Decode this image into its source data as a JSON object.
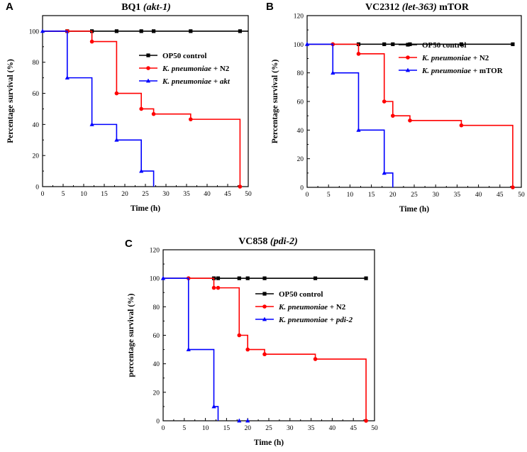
{
  "chart_data": [
    {
      "id": "A",
      "type": "line",
      "step": true,
      "letter": "A",
      "title": {
        "main": "BQ1 ",
        "italic": "(akt-1)",
        "after": ""
      },
      "xlabel": "Time (h)",
      "ylabel": "Percentage survival (%)",
      "xlim": [
        0,
        50
      ],
      "ylim": [
        0,
        110
      ],
      "xticks": [
        0,
        5,
        10,
        15,
        20,
        25,
        30,
        35,
        40,
        45,
        50
      ],
      "yticks": [
        0,
        20,
        40,
        60,
        80,
        100
      ],
      "legend_position": "upper-right",
      "series": [
        {
          "name_parts": [
            {
              "t": "OP50 control",
              "i": false
            }
          ],
          "color": "#000000",
          "marker": "square",
          "steps": [
            [
              0,
              100
            ],
            [
              50,
              100
            ]
          ],
          "markers": [
            [
              6,
              100
            ],
            [
              12,
              100
            ],
            [
              18,
              100
            ],
            [
              24,
              100
            ],
            [
              27,
              100
            ],
            [
              36,
              100
            ],
            [
              48,
              100
            ]
          ]
        },
        {
          "name_parts": [
            {
              "t": "K. pneumoniae",
              "i": true
            },
            {
              "t": " + N2",
              "i": false
            }
          ],
          "color": "#ff0000",
          "marker": "circle",
          "steps": [
            [
              0,
              100
            ],
            [
              12,
              93.3
            ],
            [
              18,
              60
            ],
            [
              24,
              50
            ],
            [
              27,
              46.7
            ],
            [
              36,
              43.3
            ],
            [
              48,
              0
            ]
          ],
          "markers": [
            [
              6,
              100
            ],
            [
              12,
              93.3
            ],
            [
              18,
              60
            ],
            [
              24,
              50
            ],
            [
              27,
              46.7
            ],
            [
              36,
              43.3
            ],
            [
              48,
              0
            ]
          ]
        },
        {
          "name_parts": [
            {
              "t": "K. pneumoniae",
              "i": true
            },
            {
              "t": " + ",
              "i": false
            },
            {
              "t": "akt",
              "i": true
            }
          ],
          "color": "#0000ff",
          "marker": "triangle",
          "steps": [
            [
              0,
              100
            ],
            [
              6,
              70
            ],
            [
              12,
              40
            ],
            [
              18,
              30
            ],
            [
              24,
              10
            ],
            [
              27,
              0
            ]
          ],
          "markers": [
            [
              0,
              100
            ],
            [
              6,
              70
            ],
            [
              12,
              40
            ],
            [
              18,
              30
            ],
            [
              24,
              10
            ]
          ]
        }
      ]
    },
    {
      "id": "B",
      "type": "line",
      "step": true,
      "letter": "B",
      "title": {
        "main": "VC2312 ",
        "italic": "(let-363)",
        "after": " mTOR"
      },
      "xlabel": "Time (h)",
      "ylabel": "Percentage survival (%)",
      "xlim": [
        0,
        50
      ],
      "ylim": [
        0,
        120
      ],
      "xticks": [
        0,
        5,
        10,
        15,
        20,
        25,
        30,
        35,
        40,
        45,
        50
      ],
      "yticks": [
        0,
        20,
        40,
        60,
        80,
        100,
        120
      ],
      "legend_position": "upper-right",
      "series": [
        {
          "name_parts": [
            {
              "t": "OP50 control",
              "i": false
            }
          ],
          "color": "#000000",
          "marker": "square",
          "steps": [
            [
              0,
              100
            ],
            [
              48,
              100
            ]
          ],
          "markers": [
            [
              12,
              100
            ],
            [
              18,
              100
            ],
            [
              20,
              100
            ],
            [
              24,
              100
            ],
            [
              36,
              100
            ],
            [
              48,
              100
            ]
          ]
        },
        {
          "name_parts": [
            {
              "t": "K. pneumoniae",
              "i": true
            },
            {
              "t": " + N2",
              "i": false
            }
          ],
          "color": "#ff0000",
          "marker": "circle",
          "steps": [
            [
              0,
              100
            ],
            [
              12,
              93.3
            ],
            [
              18,
              60
            ],
            [
              20,
              50
            ],
            [
              24,
              46.7
            ],
            [
              36,
              43.3
            ],
            [
              48,
              0
            ]
          ],
          "markers": [
            [
              6,
              100
            ],
            [
              12,
              93.3
            ],
            [
              18,
              60
            ],
            [
              20,
              50
            ],
            [
              24,
              46.7
            ],
            [
              36,
              43.3
            ],
            [
              48,
              0
            ]
          ]
        },
        {
          "name_parts": [
            {
              "t": "K. pneumoniae",
              "i": true
            },
            {
              "t": " + mTOR",
              "i": false
            }
          ],
          "color": "#0000ff",
          "marker": "triangle",
          "steps": [
            [
              0,
              100
            ],
            [
              6,
              80
            ],
            [
              12,
              40
            ],
            [
              18,
              10
            ],
            [
              20,
              0
            ]
          ],
          "markers": [
            [
              0,
              100
            ],
            [
              6,
              80
            ],
            [
              12,
              40
            ],
            [
              18,
              10
            ]
          ]
        }
      ]
    },
    {
      "id": "C",
      "type": "line",
      "step": true,
      "letter": "C",
      "title": {
        "main": "VC858 ",
        "italic": "(pdi-2)",
        "after": ""
      },
      "xlabel": "Time (h)",
      "ylabel": "percentage survival (%)",
      "xlim": [
        0,
        50
      ],
      "ylim": [
        0,
        120
      ],
      "xticks": [
        0,
        5,
        10,
        15,
        20,
        25,
        30,
        35,
        40,
        45,
        50
      ],
      "yticks": [
        0,
        20,
        40,
        60,
        80,
        100,
        120
      ],
      "legend_position": "upper-right",
      "series": [
        {
          "name_parts": [
            {
              "t": "OP50 control",
              "i": false
            }
          ],
          "color": "#000000",
          "marker": "square",
          "steps": [
            [
              0,
              100
            ],
            [
              48,
              100
            ]
          ],
          "markers": [
            [
              12,
              100
            ],
            [
              13,
              100
            ],
            [
              18,
              100
            ],
            [
              20,
              100
            ],
            [
              24,
              100
            ],
            [
              36,
              100
            ],
            [
              48,
              100
            ]
          ]
        },
        {
          "name_parts": [
            {
              "t": "K. pneumoniae",
              "i": true
            },
            {
              "t": " + N2",
              "i": false
            }
          ],
          "color": "#ff0000",
          "marker": "circle",
          "steps": [
            [
              0,
              100
            ],
            [
              12,
              93.3
            ],
            [
              18,
              60
            ],
            [
              20,
              50
            ],
            [
              24,
              46.7
            ],
            [
              36,
              43.3
            ],
            [
              48,
              0
            ]
          ],
          "markers": [
            [
              6,
              100
            ],
            [
              12,
              93.3
            ],
            [
              13,
              93.3
            ],
            [
              18,
              60
            ],
            [
              20,
              50
            ],
            [
              24,
              46.7
            ],
            [
              36,
              43.3
            ],
            [
              48,
              0
            ]
          ]
        },
        {
          "name_parts": [
            {
              "t": "K. pneumoniae",
              "i": true
            },
            {
              "t": " + ",
              "i": false
            },
            {
              "t": "pdi-2",
              "i": true
            }
          ],
          "color": "#0000ff",
          "marker": "triangle",
          "steps": [
            [
              0,
              100
            ],
            [
              6,
              50
            ],
            [
              12,
              10
            ],
            [
              13,
              0
            ]
          ],
          "markers": [
            [
              0,
              100
            ],
            [
              6,
              50
            ],
            [
              12,
              10
            ],
            [
              18,
              0
            ],
            [
              20,
              0
            ]
          ]
        }
      ]
    }
  ]
}
